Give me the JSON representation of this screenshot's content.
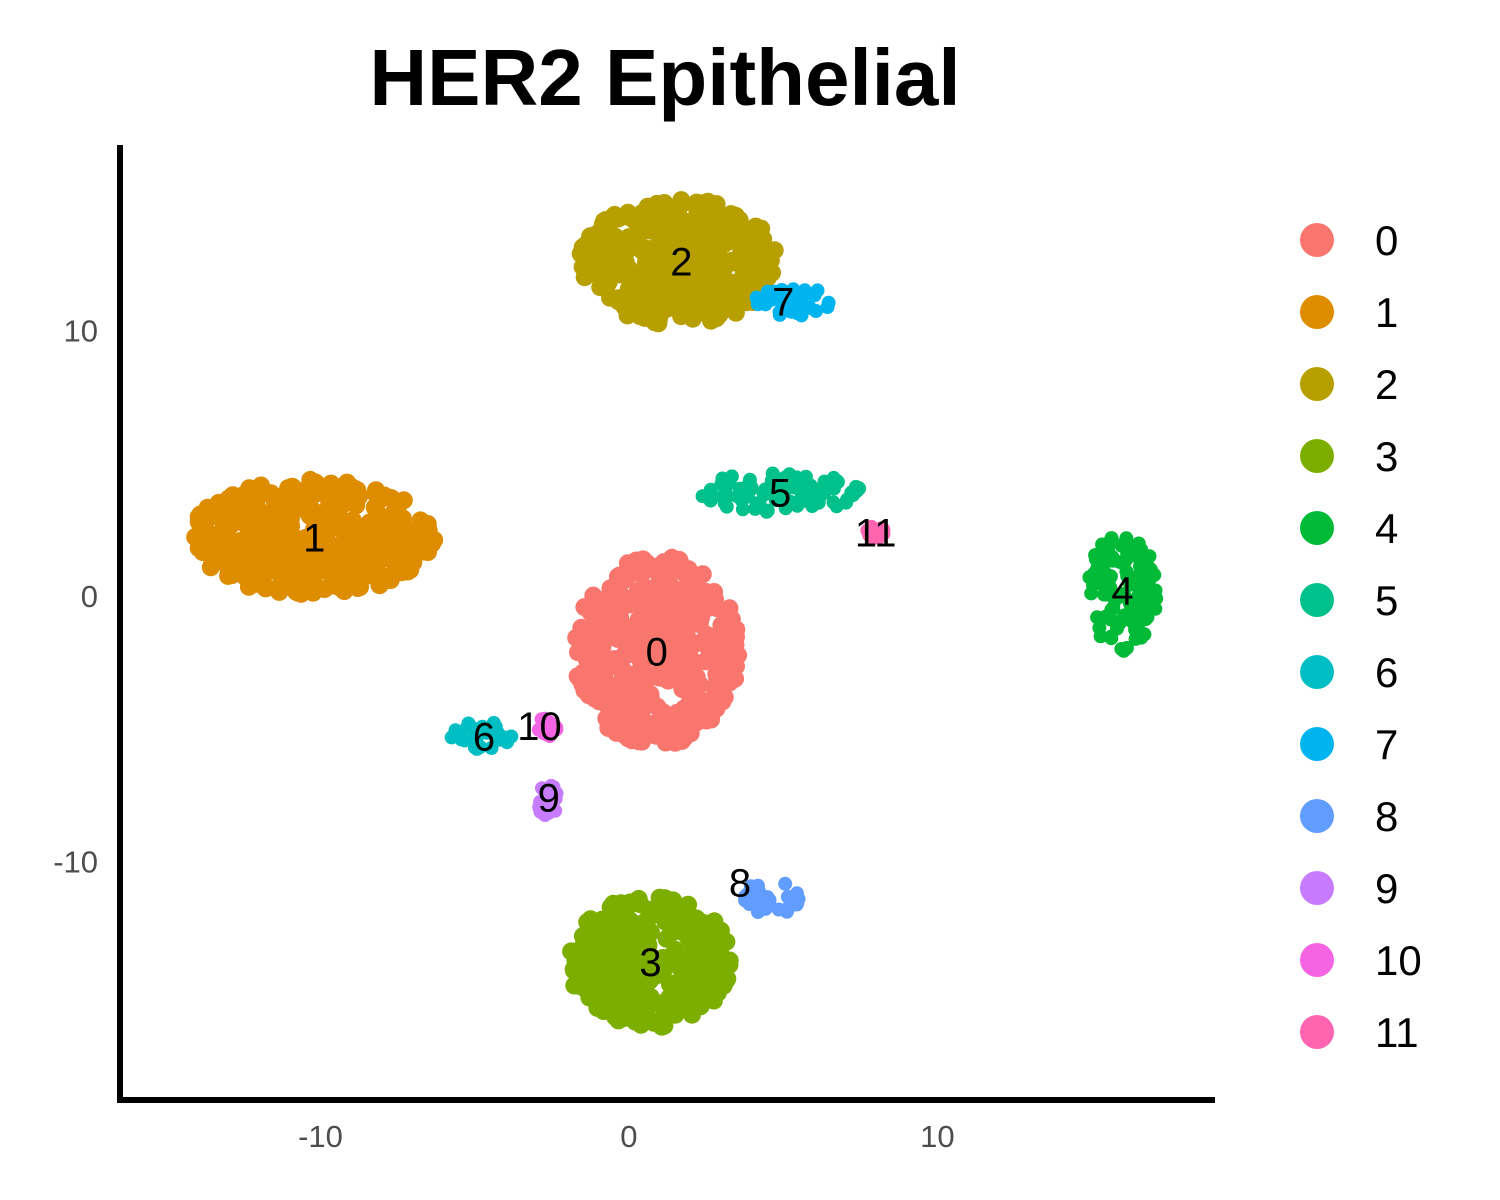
{
  "chart_data": {
    "type": "scatter",
    "title": "HER2 Epithelial",
    "xlabel": "",
    "ylabel": "",
    "xlim": [
      -16.5,
      19
    ],
    "ylim": [
      -19,
      17
    ],
    "x_ticks": [
      "-10",
      "0",
      "10"
    ],
    "y_ticks": [
      "10",
      "0",
      "-10"
    ],
    "grid": false,
    "legend_position": "right",
    "legend": [
      {
        "label": "0",
        "color": "#F8766D"
      },
      {
        "label": "1",
        "color": "#DE8C00"
      },
      {
        "label": "2",
        "color": "#B79F00"
      },
      {
        "label": "3",
        "color": "#7CAE00"
      },
      {
        "label": "4",
        "color": "#00BA38"
      },
      {
        "label": "5",
        "color": "#00C08B"
      },
      {
        "label": "6",
        "color": "#00BFC4"
      },
      {
        "label": "7",
        "color": "#00B4F0"
      },
      {
        "label": "8",
        "color": "#619CFF"
      },
      {
        "label": "9",
        "color": "#C77CFF"
      },
      {
        "label": "10",
        "color": "#F564E3"
      },
      {
        "label": "11",
        "color": "#FF64B0"
      }
    ],
    "clusters": [
      {
        "label": "0",
        "color": "#F8766D",
        "center": [
          0.9,
          -2.1
        ],
        "rx": 2.8,
        "ry": 3.8
      },
      {
        "label": "1",
        "color": "#DE8C00",
        "center": [
          -10.3,
          2.2
        ],
        "rx": 4.2,
        "ry": 2.3
      },
      {
        "label": "2",
        "color": "#B79F00",
        "center": [
          1.6,
          12.6
        ],
        "rx": 3.4,
        "ry": 2.5
      },
      {
        "label": "3",
        "color": "#7CAE00",
        "center": [
          0.7,
          -13.8
        ],
        "rx": 2.8,
        "ry": 2.6
      },
      {
        "label": "4",
        "color": "#00BA38",
        "center": [
          16.0,
          0.2
        ],
        "rx": 1.2,
        "ry": 2.4
      },
      {
        "label": "5",
        "color": "#00C08B",
        "center": [
          4.9,
          3.9
        ],
        "rx": 2.8,
        "ry": 0.8
      },
      {
        "label": "6",
        "color": "#00BFC4",
        "center": [
          -4.7,
          -5.3
        ],
        "rx": 1.2,
        "ry": 0.6
      },
      {
        "label": "7",
        "color": "#00B4F0",
        "center": [
          5.3,
          11.1
        ],
        "rx": 1.3,
        "ry": 0.6
      },
      {
        "label": "8",
        "color": "#619CFF",
        "center": [
          4.6,
          -11.4
        ],
        "rx": 1.0,
        "ry": 0.7
      },
      {
        "label": "9",
        "color": "#C77CFF",
        "center": [
          -2.6,
          -7.6
        ],
        "rx": 0.4,
        "ry": 0.8
      },
      {
        "label": "10",
        "color": "#F564E3",
        "center": [
          -2.7,
          -5.0
        ],
        "rx": 0.4,
        "ry": 0.4
      },
      {
        "label": "11",
        "color": "#FF64B0",
        "center": [
          8.0,
          2.4
        ],
        "rx": 0.3,
        "ry": 0.3
      }
    ],
    "cluster_labels": [
      {
        "text": "0",
        "x": 0.9,
        "y": -2.1
      },
      {
        "text": "1",
        "x": -10.2,
        "y": 2.2
      },
      {
        "text": "2",
        "x": 1.7,
        "y": 12.6
      },
      {
        "text": "3",
        "x": 0.7,
        "y": -13.8
      },
      {
        "text": "4",
        "x": 16.0,
        "y": 0.2
      },
      {
        "text": "5",
        "x": 4.9,
        "y": 3.9
      },
      {
        "text": "6",
        "x": -4.7,
        "y": -5.3
      },
      {
        "text": "7",
        "x": 5.0,
        "y": 11.1
      },
      {
        "text": "8",
        "x": 3.6,
        "y": -10.8
      },
      {
        "text": "9",
        "x": -2.6,
        "y": -7.6
      },
      {
        "text": "10",
        "x": -2.9,
        "y": -4.9
      },
      {
        "text": "11",
        "x": 8.0,
        "y": 2.4
      }
    ]
  }
}
